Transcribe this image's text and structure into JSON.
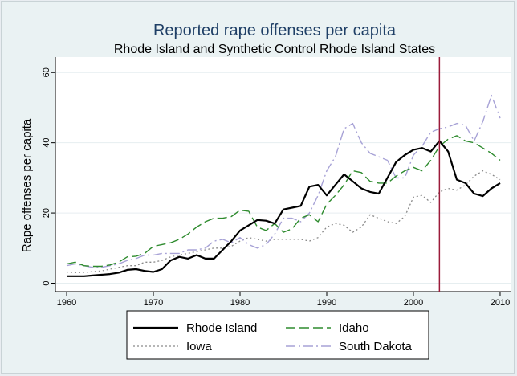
{
  "chart_data": {
    "type": "line",
    "title": "Reported rape offenses per capita",
    "subtitle": "Rhode Island and Synthetic Control Rhode Island States",
    "ylabel": "Rape offenses per capita",
    "xlabel": "",
    "xlim": [
      1960,
      2010
    ],
    "ylim": [
      0,
      60
    ],
    "xticks": [
      1960,
      1970,
      1980,
      1990,
      2000,
      2010
    ],
    "yticks": [
      0,
      20,
      40,
      60
    ],
    "grid": "horizontal",
    "vline": {
      "x": 2003,
      "color": "#9b1b3a"
    },
    "legend_position": "bottom",
    "x": [
      1960,
      1961,
      1962,
      1963,
      1964,
      1965,
      1966,
      1967,
      1968,
      1969,
      1970,
      1971,
      1972,
      1973,
      1974,
      1975,
      1976,
      1977,
      1978,
      1979,
      1980,
      1981,
      1982,
      1983,
      1984,
      1985,
      1986,
      1987,
      1988,
      1989,
      1990,
      1991,
      1992,
      1993,
      1994,
      1995,
      1996,
      1997,
      1998,
      1999,
      2000,
      2001,
      2002,
      2003,
      2004,
      2005,
      2006,
      2007,
      2008,
      2009,
      2010
    ],
    "series": [
      {
        "name": "Rhode Island",
        "color": "#000000",
        "dash": "solid",
        "values": [
          2,
          2,
          2,
          2.2,
          2.4,
          2.6,
          3,
          3.8,
          4,
          3.5,
          3.2,
          4,
          6.5,
          7.5,
          7,
          8,
          7,
          7,
          9.5,
          12,
          15,
          16.5,
          18,
          17.8,
          17,
          21,
          21.5,
          22,
          27.5,
          28,
          25,
          28,
          31,
          29,
          27,
          26,
          25.5,
          30,
          34.5,
          36.5,
          38,
          38.5,
          37.5,
          40.5,
          37.5,
          29.5,
          28.5,
          25.5,
          24.8,
          27,
          28.5
        ]
      },
      {
        "name": "Idaho",
        "color": "#2e8b2e",
        "dash": "long-dash",
        "values": [
          5.5,
          6,
          5,
          4.8,
          4.8,
          5.2,
          6,
          7.5,
          7.7,
          8.5,
          10.5,
          11,
          11.5,
          12.5,
          14,
          16,
          17.5,
          18.5,
          18.5,
          19,
          20.8,
          20.5,
          16,
          15,
          17,
          14.5,
          15.5,
          18.5,
          19.5,
          17.5,
          22.5,
          25,
          28,
          32,
          31.5,
          29,
          28.5,
          28.5,
          30.5,
          32,
          33,
          32,
          35,
          39,
          41,
          42,
          40.5,
          40,
          38.5,
          37,
          35
        ]
      },
      {
        "name": "Iowa",
        "color": "#8a8a8a",
        "dash": "dotted",
        "values": [
          3.2,
          3,
          3.1,
          3.3,
          3.5,
          4,
          4.5,
          5,
          5,
          6,
          6,
          6.5,
          7.5,
          8,
          8.5,
          9,
          9.5,
          10,
          10,
          10.5,
          12,
          13,
          12.5,
          12,
          12.5,
          12.5,
          12.5,
          12.5,
          12,
          13,
          16,
          17,
          16.5,
          14.5,
          16,
          19.5,
          18.5,
          17.5,
          17,
          19,
          24.5,
          25,
          23,
          26,
          27,
          26.5,
          28,
          30.5,
          32,
          31,
          29.5
        ]
      },
      {
        "name": "South Dakota",
        "color": "#a7a2d6",
        "dash": "dash-dot",
        "values": [
          5,
          5.5,
          5,
          4.5,
          4.5,
          5,
          5.5,
          6.5,
          7,
          8,
          8,
          8.5,
          8.5,
          8.5,
          9.5,
          9.5,
          10,
          12,
          12.5,
          11.5,
          13,
          11,
          10,
          11,
          14,
          18.5,
          18.5,
          17.5,
          20,
          25,
          32,
          36,
          44,
          45.5,
          40,
          37,
          36,
          35,
          30,
          30,
          36.5,
          39,
          43,
          44,
          44.5,
          45.5,
          45,
          40.5,
          46,
          53.5,
          47
        ]
      }
    ]
  }
}
